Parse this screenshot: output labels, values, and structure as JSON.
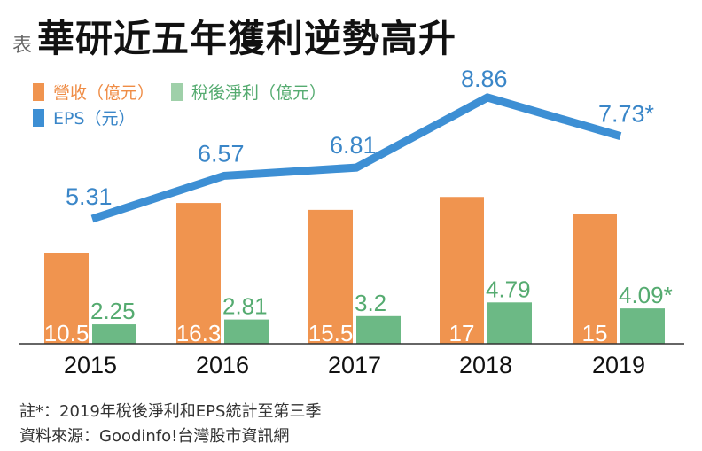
{
  "title_prefix": "表",
  "title": "華研近五年獲利逆勢高升",
  "colors": {
    "revenue": "#f0944f",
    "net_income": "#6cb985",
    "eps": "#3d8fd4",
    "revenue_text": "#ef8c45",
    "net_income_text": "#55ab70",
    "eps_text": "#3a86c8"
  },
  "chart_data": {
    "type": "bar+line",
    "categories": [
      "2015",
      "2016",
      "2017",
      "2018",
      "2019"
    ],
    "series": [
      {
        "name": "營收（億元）",
        "type": "bar",
        "values": [
          10.5,
          16.3,
          15.5,
          17,
          15
        ],
        "labels": [
          "10.5",
          "16.3",
          "15.5",
          "17",
          "15"
        ]
      },
      {
        "name": "稅後淨利（億元）",
        "type": "bar",
        "values": [
          2.25,
          2.81,
          3.2,
          4.79,
          4.09
        ],
        "labels": [
          "2.25",
          "2.81",
          "3.2",
          "4.79",
          "4.09*"
        ]
      },
      {
        "name": "EPS（元）",
        "type": "line",
        "values": [
          5.31,
          6.57,
          6.81,
          8.86,
          7.73
        ],
        "labels": [
          "5.31",
          "6.57",
          "6.81",
          "8.86",
          "7.73*"
        ]
      }
    ],
    "legend_placement": "top-left",
    "grid": false
  },
  "footnotes": [
    "註*：2019年稅後淨利和EPS統計至第三季",
    "資料來源：Goodinfo!台灣股市資訊網"
  ]
}
